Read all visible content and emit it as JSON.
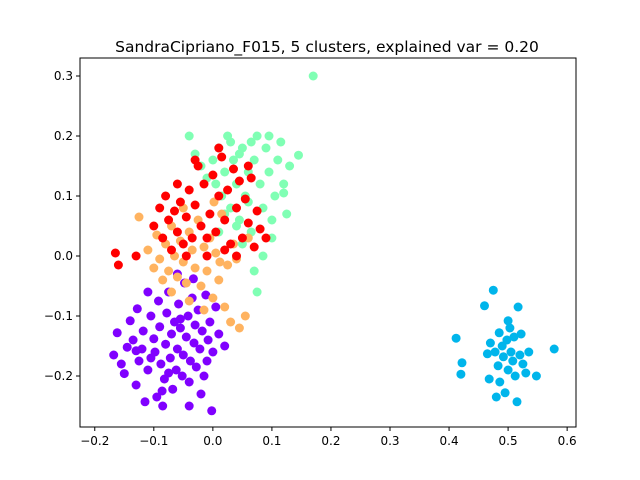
{
  "chart_data": {
    "type": "scatter",
    "title": "SandraCipriano_F015, 5 clusters, explained var = 0.20",
    "xlabel": "",
    "ylabel": "",
    "xlim": [
      -0.225,
      0.615
    ],
    "ylim": [
      -0.285,
      0.33
    ],
    "x_ticks": [
      -0.2,
      -0.1,
      0.0,
      0.1,
      0.2,
      0.3,
      0.4,
      0.5,
      0.6
    ],
    "x_tick_labels": [
      "−0.2",
      "−0.1",
      "0.0",
      "0.1",
      "0.2",
      "0.3",
      "0.4",
      "0.5",
      "0.6"
    ],
    "y_ticks": [
      -0.2,
      -0.1,
      0.0,
      0.1,
      0.2,
      0.3
    ],
    "y_tick_labels": [
      "−0.2",
      "−0.1",
      "0.0",
      "0.1",
      "0.2",
      "0.3"
    ],
    "grid": false,
    "legend": "none",
    "series": [
      {
        "color": "#8000ff",
        "points": [
          {
            "x": -0.168,
            "y": -0.165
          },
          {
            "x": -0.162,
            "y": -0.128
          },
          {
            "x": -0.155,
            "y": -0.18
          },
          {
            "x": -0.15,
            "y": -0.196
          },
          {
            "x": -0.145,
            "y": -0.152
          },
          {
            "x": -0.14,
            "y": -0.108
          },
          {
            "x": -0.135,
            "y": -0.14
          },
          {
            "x": -0.13,
            "y": -0.215
          },
          {
            "x": -0.128,
            "y": -0.088
          },
          {
            "x": -0.125,
            "y": -0.175
          },
          {
            "x": -0.12,
            "y": -0.155
          },
          {
            "x": -0.118,
            "y": -0.125
          },
          {
            "x": -0.115,
            "y": -0.243
          },
          {
            "x": -0.11,
            "y": -0.19
          },
          {
            "x": -0.105,
            "y": -0.1
          },
          {
            "x": -0.1,
            "y": -0.138
          },
          {
            "x": -0.098,
            "y": -0.16
          },
          {
            "x": -0.095,
            "y": -0.235
          },
          {
            "x": -0.092,
            "y": -0.075
          },
          {
            "x": -0.09,
            "y": -0.118
          },
          {
            "x": -0.088,
            "y": -0.18
          },
          {
            "x": -0.085,
            "y": -0.25
          },
          {
            "x": -0.082,
            "y": -0.205
          },
          {
            "x": -0.08,
            "y": -0.147
          },
          {
            "x": -0.078,
            "y": -0.095
          },
          {
            "x": -0.075,
            "y": -0.06
          },
          {
            "x": -0.072,
            "y": -0.17
          },
          {
            "x": -0.07,
            "y": -0.13
          },
          {
            "x": -0.068,
            "y": -0.222
          },
          {
            "x": -0.065,
            "y": -0.11
          },
          {
            "x": -0.062,
            "y": -0.19
          },
          {
            "x": -0.06,
            "y": -0.155
          },
          {
            "x": -0.058,
            "y": -0.08
          },
          {
            "x": -0.055,
            "y": -0.12
          },
          {
            "x": -0.052,
            "y": -0.2
          },
          {
            "x": -0.05,
            "y": -0.165
          },
          {
            "x": -0.048,
            "y": -0.045
          },
          {
            "x": -0.045,
            "y": -0.135
          },
          {
            "x": -0.042,
            "y": -0.1
          },
          {
            "x": -0.04,
            "y": -0.21
          },
          {
            "x": -0.038,
            "y": -0.175
          },
          {
            "x": -0.035,
            "y": -0.07
          },
          {
            "x": -0.032,
            "y": -0.145
          },
          {
            "x": -0.03,
            "y": -0.115
          },
          {
            "x": -0.028,
            "y": -0.185
          },
          {
            "x": -0.025,
            "y": -0.09
          },
          {
            "x": -0.022,
            "y": -0.155
          },
          {
            "x": -0.02,
            "y": -0.23
          },
          {
            "x": -0.018,
            "y": -0.125
          },
          {
            "x": -0.015,
            "y": -0.2
          },
          {
            "x": -0.012,
            "y": -0.065
          },
          {
            "x": -0.01,
            "y": -0.175
          },
          {
            "x": -0.008,
            "y": -0.14
          },
          {
            "x": -0.005,
            "y": -0.11
          },
          {
            "x": 0.0,
            "y": -0.16
          },
          {
            "x": 0.005,
            "y": -0.085
          },
          {
            "x": 0.01,
            "y": -0.13
          },
          {
            "x": -0.002,
            "y": -0.258
          },
          {
            "x": -0.11,
            "y": -0.06
          },
          {
            "x": -0.06,
            "y": -0.03
          },
          {
            "x": -0.033,
            "y": -0.038
          },
          {
            "x": -0.086,
            "y": -0.225
          },
          {
            "x": -0.13,
            "y": -0.158
          },
          {
            "x": -0.04,
            "y": -0.25
          },
          {
            "x": 0.02,
            "y": -0.15
          },
          {
            "x": -0.075,
            "y": -0.195
          },
          {
            "x": -0.105,
            "y": -0.17
          },
          {
            "x": -0.055,
            "y": -0.105
          }
        ]
      },
      {
        "color": "#00b5eb",
        "points": [
          {
            "x": 0.412,
            "y": -0.137
          },
          {
            "x": 0.42,
            "y": -0.197
          },
          {
            "x": 0.422,
            "y": -0.178
          },
          {
            "x": 0.46,
            "y": -0.083
          },
          {
            "x": 0.465,
            "y": -0.163
          },
          {
            "x": 0.468,
            "y": -0.205
          },
          {
            "x": 0.47,
            "y": -0.145
          },
          {
            "x": 0.475,
            "y": -0.057
          },
          {
            "x": 0.478,
            "y": -0.16
          },
          {
            "x": 0.48,
            "y": -0.235
          },
          {
            "x": 0.483,
            "y": -0.183
          },
          {
            "x": 0.486,
            "y": -0.21
          },
          {
            "x": 0.49,
            "y": -0.15
          },
          {
            "x": 0.492,
            "y": -0.168
          },
          {
            "x": 0.495,
            "y": -0.228
          },
          {
            "x": 0.498,
            "y": -0.14
          },
          {
            "x": 0.5,
            "y": -0.19
          },
          {
            "x": 0.503,
            "y": -0.12
          },
          {
            "x": 0.505,
            "y": -0.16
          },
          {
            "x": 0.508,
            "y": -0.175
          },
          {
            "x": 0.51,
            "y": -0.135
          },
          {
            "x": 0.512,
            "y": -0.2
          },
          {
            "x": 0.515,
            "y": -0.243
          },
          {
            "x": 0.517,
            "y": -0.085
          },
          {
            "x": 0.52,
            "y": -0.165
          },
          {
            "x": 0.522,
            "y": -0.13
          },
          {
            "x": 0.525,
            "y": -0.18
          },
          {
            "x": 0.53,
            "y": -0.195
          },
          {
            "x": 0.535,
            "y": -0.16
          },
          {
            "x": 0.548,
            "y": -0.2
          },
          {
            "x": 0.578,
            "y": -0.155
          },
          {
            "x": 0.5,
            "y": -0.108
          },
          {
            "x": 0.485,
            "y": -0.128
          }
        ]
      },
      {
        "color": "#80ffb4",
        "points": [
          {
            "x": 0.17,
            "y": 0.3
          },
          {
            "x": -0.04,
            "y": 0.2
          },
          {
            "x": -0.03,
            "y": 0.17
          },
          {
            "x": -0.02,
            "y": 0.15
          },
          {
            "x": -0.01,
            "y": 0.13
          },
          {
            "x": 0.0,
            "y": 0.16
          },
          {
            "x": 0.005,
            "y": 0.12
          },
          {
            "x": 0.01,
            "y": 0.18
          },
          {
            "x": 0.015,
            "y": 0.1
          },
          {
            "x": 0.02,
            "y": 0.14
          },
          {
            "x": 0.025,
            "y": 0.2
          },
          {
            "x": 0.03,
            "y": 0.08
          },
          {
            "x": 0.035,
            "y": 0.16
          },
          {
            "x": 0.04,
            "y": 0.12
          },
          {
            "x": 0.045,
            "y": 0.06
          },
          {
            "x": 0.05,
            "y": 0.18
          },
          {
            "x": 0.055,
            "y": 0.1
          },
          {
            "x": 0.06,
            "y": 0.14
          },
          {
            "x": 0.065,
            "y": 0.04
          },
          {
            "x": 0.07,
            "y": 0.16
          },
          {
            "x": 0.075,
            "y": 0.2
          },
          {
            "x": 0.08,
            "y": 0.12
          },
          {
            "x": 0.085,
            "y": 0.08
          },
          {
            "x": 0.09,
            "y": 0.18
          },
          {
            "x": 0.095,
            "y": 0.14
          },
          {
            "x": 0.1,
            "y": 0.06
          },
          {
            "x": 0.105,
            "y": 0.1
          },
          {
            "x": 0.11,
            "y": 0.16
          },
          {
            "x": 0.115,
            "y": 0.19
          },
          {
            "x": 0.12,
            "y": 0.12
          },
          {
            "x": 0.125,
            "y": 0.07
          },
          {
            "x": 0.13,
            "y": 0.15
          },
          {
            "x": 0.145,
            "y": 0.168
          },
          {
            "x": 0.075,
            "y": -0.06
          },
          {
            "x": 0.085,
            "y": 0.0
          },
          {
            "x": 0.07,
            "y": -0.025
          },
          {
            "x": 0.05,
            "y": 0.02
          },
          {
            "x": 0.04,
            "y": 0.05
          },
          {
            "x": 0.02,
            "y": 0.07
          },
          {
            "x": 0.06,
            "y": 0.09
          },
          {
            "x": 0.1,
            "y": 0.03
          },
          {
            "x": 0.12,
            "y": 0.105
          },
          {
            "x": 0.095,
            "y": 0.2
          },
          {
            "x": 0.045,
            "y": 0.17
          },
          {
            "x": 0.065,
            "y": 0.19
          },
          {
            "x": 0.03,
            "y": 0.19
          },
          {
            "x": 0.01,
            "y": 0.04
          }
        ]
      },
      {
        "color": "#ffb360",
        "points": [
          {
            "x": -0.125,
            "y": 0.065
          },
          {
            "x": -0.11,
            "y": 0.01
          },
          {
            "x": -0.1,
            "y": -0.02
          },
          {
            "x": -0.095,
            "y": 0.035
          },
          {
            "x": -0.09,
            "y": -0.005
          },
          {
            "x": -0.085,
            "y": -0.04
          },
          {
            "x": -0.08,
            "y": 0.02
          },
          {
            "x": -0.075,
            "y": -0.025
          },
          {
            "x": -0.07,
            "y": 0.05
          },
          {
            "x": -0.065,
            "y": 0.0
          },
          {
            "x": -0.06,
            "y": -0.035
          },
          {
            "x": -0.055,
            "y": 0.025
          },
          {
            "x": -0.05,
            "y": -0.01
          },
          {
            "x": -0.045,
            "y": -0.045
          },
          {
            "x": -0.04,
            "y": 0.04
          },
          {
            "x": -0.035,
            "y": 0.01
          },
          {
            "x": -0.03,
            "y": -0.02
          },
          {
            "x": -0.025,
            "y": 0.06
          },
          {
            "x": -0.02,
            "y": -0.05
          },
          {
            "x": -0.015,
            "y": 0.015
          },
          {
            "x": -0.01,
            "y": -0.025
          },
          {
            "x": -0.005,
            "y": 0.03
          },
          {
            "x": 0.0,
            "y": -0.07
          },
          {
            "x": 0.005,
            "y": 0.005
          },
          {
            "x": 0.01,
            "y": -0.04
          },
          {
            "x": 0.015,
            "y": 0.07
          },
          {
            "x": 0.02,
            "y": -0.085
          },
          {
            "x": 0.025,
            "y": -0.015
          },
          {
            "x": 0.03,
            "y": -0.11
          },
          {
            "x": 0.035,
            "y": 0.02
          },
          {
            "x": 0.04,
            "y": -0.005
          },
          {
            "x": 0.045,
            "y": -0.12
          },
          {
            "x": 0.055,
            "y": -0.1
          },
          {
            "x": 0.06,
            "y": 0.03
          },
          {
            "x": -0.07,
            "y": -0.06
          },
          {
            "x": -0.04,
            "y": -0.075
          },
          {
            "x": -0.015,
            "y": -0.09
          },
          {
            "x": 0.002,
            "y": 0.09
          },
          {
            "x": -0.05,
            "y": 0.08
          },
          {
            "x": 0.012,
            "y": -0.01
          }
        ]
      },
      {
        "color": "#ff0000",
        "points": [
          {
            "x": -0.165,
            "y": 0.005
          },
          {
            "x": -0.16,
            "y": -0.015
          },
          {
            "x": -0.13,
            "y": 0.0
          },
          {
            "x": -0.09,
            "y": 0.08
          },
          {
            "x": -0.085,
            "y": 0.03
          },
          {
            "x": -0.08,
            "y": 0.1
          },
          {
            "x": -0.075,
            "y": 0.06
          },
          {
            "x": -0.07,
            "y": 0.01
          },
          {
            "x": -0.065,
            "y": 0.075
          },
          {
            "x": -0.06,
            "y": 0.04
          },
          {
            "x": -0.055,
            "y": 0.09
          },
          {
            "x": -0.05,
            "y": 0.02
          },
          {
            "x": -0.045,
            "y": 0.065
          },
          {
            "x": -0.04,
            "y": 0.11
          },
          {
            "x": -0.035,
            "y": 0.03
          },
          {
            "x": -0.03,
            "y": 0.085
          },
          {
            "x": -0.025,
            "y": 0.15
          },
          {
            "x": -0.02,
            "y": 0.05
          },
          {
            "x": -0.015,
            "y": 0.12
          },
          {
            "x": -0.01,
            "y": 0.0
          },
          {
            "x": -0.005,
            "y": 0.07
          },
          {
            "x": 0.0,
            "y": 0.135
          },
          {
            "x": 0.005,
            "y": 0.04
          },
          {
            "x": 0.01,
            "y": 0.1
          },
          {
            "x": 0.015,
            "y": 0.165
          },
          {
            "x": 0.02,
            "y": 0.06
          },
          {
            "x": 0.025,
            "y": 0.11
          },
          {
            "x": 0.03,
            "y": 0.02
          },
          {
            "x": 0.035,
            "y": 0.145
          },
          {
            "x": 0.04,
            "y": 0.08
          },
          {
            "x": 0.045,
            "y": 0.125
          },
          {
            "x": 0.05,
            "y": 0.03
          },
          {
            "x": 0.055,
            "y": 0.095
          },
          {
            "x": 0.06,
            "y": 0.055
          },
          {
            "x": 0.065,
            "y": 0.13
          },
          {
            "x": 0.07,
            "y": 0.015
          },
          {
            "x": 0.075,
            "y": 0.075
          },
          {
            "x": 0.08,
            "y": 0.045
          },
          {
            "x": 0.09,
            "y": 0.03
          },
          {
            "x": -0.03,
            "y": 0.16
          },
          {
            "x": 0.01,
            "y": 0.18
          },
          {
            "x": -0.06,
            "y": 0.12
          },
          {
            "x": -0.1,
            "y": 0.05
          },
          {
            "x": -0.01,
            "y": 0.03
          },
          {
            "x": 0.02,
            "y": 0.01
          },
          {
            "x": 0.04,
            "y": 0.0
          },
          {
            "x": -0.045,
            "y": 0.0
          },
          {
            "x": 0.06,
            "y": 0.15
          }
        ]
      }
    ]
  }
}
